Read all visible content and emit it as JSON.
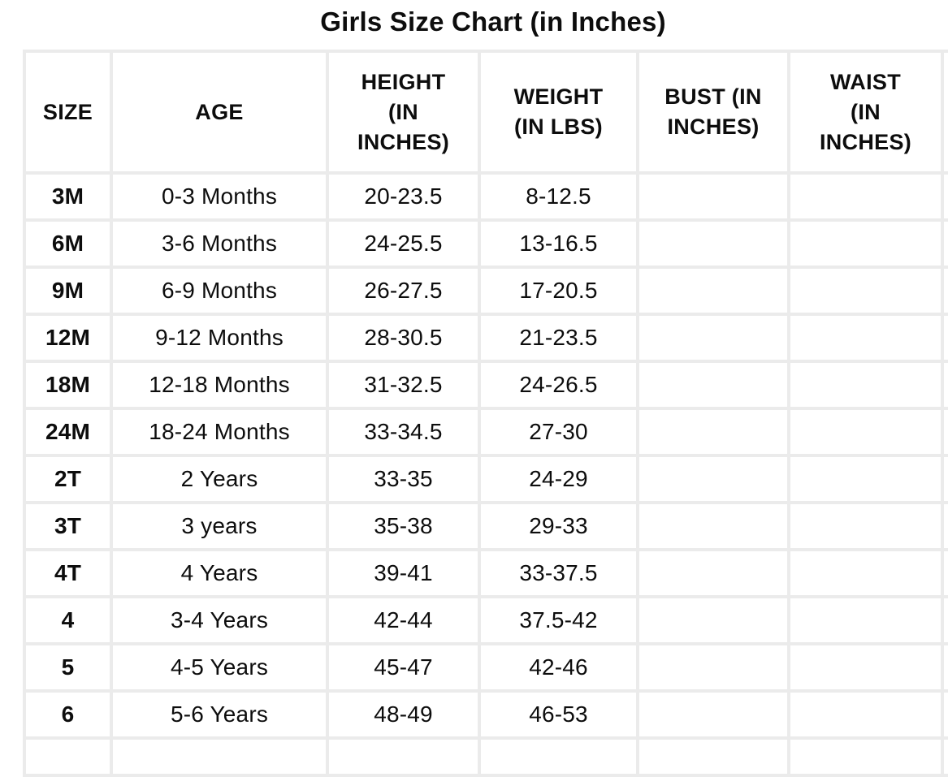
{
  "title": "Girls Size Chart (in Inches)",
  "colors": {
    "grid": "#ebebeb",
    "text": "#0d0d0d",
    "background": "#ffffff"
  },
  "table": {
    "columns": [
      {
        "key": "size",
        "label": "SIZE"
      },
      {
        "key": "age",
        "label": "AGE"
      },
      {
        "key": "height",
        "label": "HEIGHT\n(IN\nINCHES)"
      },
      {
        "key": "weight",
        "label": "WEIGHT\n(IN LBS)"
      },
      {
        "key": "bust",
        "label": "BUST (IN\nINCHES)"
      },
      {
        "key": "waist",
        "label": "WAIST\n(IN\nINCHES)"
      }
    ],
    "rows": [
      {
        "size": "3M",
        "age": "0-3 Months",
        "height": "20-23.5",
        "weight": "8-12.5",
        "bust": "",
        "waist": ""
      },
      {
        "size": "6M",
        "age": "3-6 Months",
        "height": "24-25.5",
        "weight": "13-16.5",
        "bust": "",
        "waist": ""
      },
      {
        "size": "9M",
        "age": "6-9 Months",
        "height": "26-27.5",
        "weight": "17-20.5",
        "bust": "",
        "waist": ""
      },
      {
        "size": "12M",
        "age": "9-12 Months",
        "height": "28-30.5",
        "weight": "21-23.5",
        "bust": "",
        "waist": ""
      },
      {
        "size": "18M",
        "age": "12-18 Months",
        "height": "31-32.5",
        "weight": "24-26.5",
        "bust": "",
        "waist": ""
      },
      {
        "size": "24M",
        "age": "18-24 Months",
        "height": "33-34.5",
        "weight": "27-30",
        "bust": "",
        "waist": ""
      },
      {
        "size": "2T",
        "age": "2 Years",
        "height": "33-35",
        "weight": "24-29",
        "bust": "",
        "waist": ""
      },
      {
        "size": "3T",
        "age": "3 years",
        "height": "35-38",
        "weight": "29-33",
        "bust": "",
        "waist": ""
      },
      {
        "size": "4T",
        "age": "4 Years",
        "height": "39-41",
        "weight": "33-37.5",
        "bust": "",
        "waist": ""
      },
      {
        "size": "4",
        "age": "3-4 Years",
        "height": "42-44",
        "weight": "37.5-42",
        "bust": "",
        "waist": ""
      },
      {
        "size": "5",
        "age": "4-5 Years",
        "height": "45-47",
        "weight": "42-46",
        "bust": "",
        "waist": ""
      },
      {
        "size": "6",
        "age": "5-6 Years",
        "height": "48-49",
        "weight": "46-53",
        "bust": "",
        "waist": ""
      }
    ]
  }
}
